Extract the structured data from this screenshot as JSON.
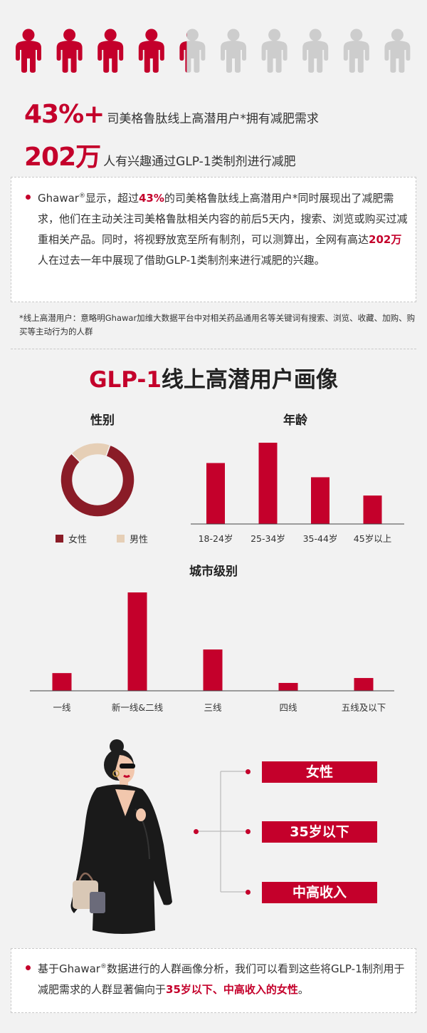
{
  "people_icons": {
    "highlighted_count": 4.5,
    "total": 10,
    "colors": {
      "active": "#c4002b",
      "inactive": "#cdcdcd"
    }
  },
  "stats": [
    {
      "big": "43%+",
      "text": "司美格鲁肽线上高潜用户*拥有减肥需求"
    },
    {
      "big": "202万",
      "text": "人有兴趣通过GLP-1类制剂进行减肥"
    }
  ],
  "summary_box": {
    "p1": "Ghawar",
    "p2": "®",
    "p3": "显示，超过",
    "p4": "43%",
    "p5": "的司美格鲁肽线上高潜用户*同时展现出了减肥需求，他们在主动关注司美格鲁肽相关内容的前后5天内，搜索、浏览或购买过减重相关产品。同时，将视野放宽至所有制剂，可以测算出，全网有高达",
    "p6": "202万",
    "p7": "人在过去一年中展现了借助GLP-1类制剂来进行减肥的兴趣。"
  },
  "footnote": "*线上高潜用户：意略明Ghawar加维大数据平台中对相关药品通用名等关键词有搜索、浏览、收藏、加购、购买等主动行为的人群",
  "section": {
    "title_accent": "GLP-1",
    "title_rest": "线上高潜用户画像"
  },
  "chart_data": [
    {
      "type": "pie",
      "title": "性别",
      "categories": [
        "女性",
        "男性"
      ],
      "values": [
        82,
        18
      ],
      "colors": [
        "#8a1c27",
        "#e6cfb6"
      ],
      "legend": "bottom"
    },
    {
      "type": "bar",
      "title": "年龄",
      "categories": [
        "18-24岁",
        "25-34岁",
        "35-44岁",
        "45岁以上"
      ],
      "values": [
        30,
        40,
        23,
        14
      ],
      "color": "#c4002b"
    },
    {
      "type": "bar",
      "title": "城市级别",
      "categories": [
        "一线",
        "新一线&二线",
        "三线",
        "四线",
        "五线及以下"
      ],
      "values": [
        18,
        100,
        42,
        8,
        13
      ],
      "color": "#c4002b"
    }
  ],
  "persona": {
    "tags": [
      "女性",
      "35岁以下",
      "中高收入"
    ]
  },
  "conclusion": {
    "p1": "基于Ghawar",
    "p2": "®",
    "p3": "数据进行的人群画像分析，我们可以看到这些将GLP-1制剂用于减肥需求的人群显著偏向于",
    "p4": "35岁以下、中高收入的女性",
    "p5": "。"
  }
}
